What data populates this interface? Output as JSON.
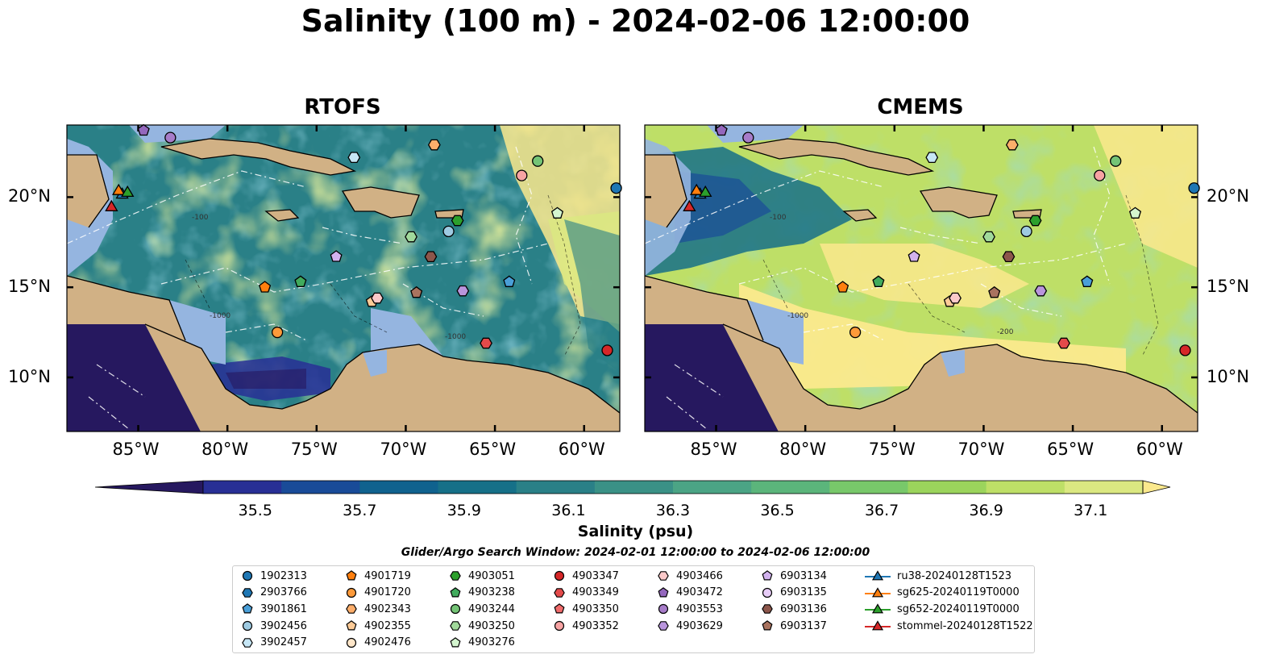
{
  "title": "Salinity (100 m) - 2024-02-06 12:00:00",
  "panels": [
    {
      "title": "RTOFS"
    },
    {
      "title": "CMEMS"
    }
  ],
  "axes": {
    "lon_ticks": [
      "85°W",
      "80°W",
      "75°W",
      "70°W",
      "65°W",
      "60°W"
    ],
    "lon_values": [
      -85,
      -80,
      -75,
      -70,
      -65,
      -60
    ],
    "lat_ticks": [
      "20°N",
      "15°N",
      "10°N"
    ],
    "lat_values": [
      20,
      15,
      10
    ],
    "lon_range": [
      -89,
      -58
    ],
    "lat_range": [
      7,
      24
    ]
  },
  "colorbar": {
    "ticks": [
      "35.5",
      "35.7",
      "35.9",
      "36.1",
      "36.3",
      "36.5",
      "36.7",
      "36.9",
      "37.1"
    ],
    "range": [
      35.4,
      37.2
    ],
    "label": "Salinity (psu)",
    "extend": "both",
    "colors": [
      "#26185f",
      "#282f95",
      "#194b98",
      "#10628e",
      "#167088",
      "#2a8087",
      "#3a9186",
      "#4ba485",
      "#5bb57b",
      "#78c86a",
      "#9bd45c",
      "#bedf67",
      "#dbe881",
      "#fbe98d"
    ]
  },
  "contour_labels": [
    "-100",
    "-1000",
    "-100",
    "-1000",
    "-200",
    "-1000"
  ],
  "search_window": "Glider/Argo Search Window: 2024-02-01 12:00:00 to 2024-02-06 12:00:00",
  "legend": {
    "items": [
      {
        "label": "1902313",
        "marker": "circle",
        "color": "#1f77b4"
      },
      {
        "label": "2903766",
        "marker": "hexagon",
        "color": "#1f77b4"
      },
      {
        "label": "3901861",
        "marker": "pentagon",
        "color": "#4a9fd8"
      },
      {
        "label": "3902456",
        "marker": "circle",
        "color": "#9ecae1"
      },
      {
        "label": "3902457",
        "marker": "hexagon",
        "color": "#c6e6f5"
      },
      {
        "label": "4901719",
        "marker": "pentagon",
        "color": "#ff7f0e"
      },
      {
        "label": "4901720",
        "marker": "circle",
        "color": "#fd9a3a"
      },
      {
        "label": "4902343",
        "marker": "hexagon",
        "color": "#fdae6b"
      },
      {
        "label": "4902355",
        "marker": "pentagon",
        "color": "#fdcb97"
      },
      {
        "label": "4902476",
        "marker": "circle",
        "color": "#fee6c9"
      },
      {
        "label": "4903051",
        "marker": "hexagon",
        "color": "#2ca02c"
      },
      {
        "label": "4903238",
        "marker": "pentagon",
        "color": "#41ab5d"
      },
      {
        "label": "4903244",
        "marker": "circle",
        "color": "#74c476"
      },
      {
        "label": "4903250",
        "marker": "hexagon",
        "color": "#a1d99b"
      },
      {
        "label": "4903276",
        "marker": "pentagon",
        "color": "#d4f5cf"
      },
      {
        "label": "4903347",
        "marker": "circle",
        "color": "#d62728"
      },
      {
        "label": "4903349",
        "marker": "hexagon",
        "color": "#e34a4a"
      },
      {
        "label": "4903350",
        "marker": "pentagon",
        "color": "#f06b6b"
      },
      {
        "label": "4903352",
        "marker": "circle",
        "color": "#f7a3a3"
      },
      {
        "label": "4903466",
        "marker": "hexagon",
        "color": "#fbc9c9"
      },
      {
        "label": "4903472",
        "marker": "pentagon",
        "color": "#9467bd"
      },
      {
        "label": "4903553",
        "marker": "circle",
        "color": "#a77cc9"
      },
      {
        "label": "4903629",
        "marker": "hexagon",
        "color": "#b995dc"
      },
      {
        "label": "6903134",
        "marker": "pentagon",
        "color": "#d2b2ee"
      },
      {
        "label": "6903135",
        "marker": "circle",
        "color": "#e7ccf7"
      },
      {
        "label": "6903136",
        "marker": "hexagon",
        "color": "#8c564b"
      },
      {
        "label": "6903137",
        "marker": "pentagon",
        "color": "#a9735f"
      },
      {
        "label": "ru38-20240128T1523",
        "marker": "triangle",
        "color": "#1f77b4"
      },
      {
        "label": "sg625-20240119T0000",
        "marker": "triangle",
        "color": "#ff7f0e"
      },
      {
        "label": "sg652-20240119T0000",
        "marker": "triangle",
        "color": "#2ca02c"
      },
      {
        "label": "stommel-20240128T1522",
        "marker": "triangle",
        "color": "#d62728"
      }
    ]
  },
  "chart_data": {
    "type": "heatmap",
    "title": "Salinity (100 m) - 2024-02-06 12:00:00",
    "colorbar_label": "Salinity (psu)",
    "color_range": [
      35.5,
      37.1
    ],
    "panels": [
      "RTOFS",
      "CMEMS"
    ],
    "observations": [
      {
        "id": "1902313",
        "lon": -58.2,
        "lat": 20.5
      },
      {
        "id": "3901861",
        "lon": -64.2,
        "lat": 15.3
      },
      {
        "id": "3902456",
        "lon": -67.6,
        "lat": 18.1
      },
      {
        "id": "3902457",
        "lon": -72.9,
        "lat": 22.2
      },
      {
        "id": "4901719",
        "lon": -77.9,
        "lat": 15.0
      },
      {
        "id": "4901720",
        "lon": -77.2,
        "lat": 12.5
      },
      {
        "id": "4902343",
        "lon": -68.4,
        "lat": 22.9
      },
      {
        "id": "4902355",
        "lon": -71.9,
        "lat": 14.2
      },
      {
        "id": "4903051",
        "lon": -67.1,
        "lat": 18.7
      },
      {
        "id": "4903238",
        "lon": -75.9,
        "lat": 15.3
      },
      {
        "id": "4903244",
        "lon": -62.6,
        "lat": 22.0
      },
      {
        "id": "4903250",
        "lon": -69.7,
        "lat": 17.8
      },
      {
        "id": "4903276",
        "lon": -61.5,
        "lat": 19.1
      },
      {
        "id": "4903347",
        "lon": -58.7,
        "lat": 11.5
      },
      {
        "id": "4903349",
        "lon": -65.5,
        "lat": 11.9
      },
      {
        "id": "4903352",
        "lon": -63.5,
        "lat": 21.2
      },
      {
        "id": "4903466",
        "lon": -71.6,
        "lat": 14.4
      },
      {
        "id": "4903472",
        "lon": -84.7,
        "lat": 23.7
      },
      {
        "id": "4903553",
        "lon": -83.2,
        "lat": 23.3
      },
      {
        "id": "4903629",
        "lon": -66.8,
        "lat": 14.8
      },
      {
        "id": "6903134",
        "lon": -73.9,
        "lat": 16.7
      },
      {
        "id": "6903136",
        "lon": -68.6,
        "lat": 16.7
      },
      {
        "id": "6903137",
        "lon": -69.4,
        "lat": 14.7
      },
      {
        "id": "ru38-20240128T1523",
        "lon": -85.9,
        "lat": 20.2
      },
      {
        "id": "sg625-20240119T0000",
        "lon": -86.1,
        "lat": 20.4
      },
      {
        "id": "sg652-20240119T0000",
        "lon": -85.6,
        "lat": 20.3
      },
      {
        "id": "stommel-20240128T1522",
        "lon": -86.5,
        "lat": 19.5
      }
    ]
  }
}
